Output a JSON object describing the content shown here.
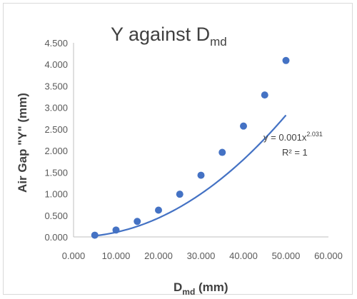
{
  "chart_data": {
    "type": "scatter",
    "title": {
      "main": "Y against D",
      "subscript": "md"
    },
    "xlabel": {
      "main": "D",
      "subscript": "md",
      "suffix": " (mm)"
    },
    "ylabel": "Air Gap \"Y\" (mm)",
    "xlim": [
      0,
      60
    ],
    "ylim": [
      0,
      4.5
    ],
    "x_ticks": [
      "0.000",
      "10.000",
      "20.000",
      "30.000",
      "40.000",
      "50.000",
      "60.000"
    ],
    "y_ticks": [
      "0.000",
      "0.500",
      "1.000",
      "1.500",
      "2.000",
      "2.500",
      "3.000",
      "3.500",
      "4.000",
      "4.500"
    ],
    "grid": false,
    "legend": "none",
    "series": [
      {
        "x": [
          5,
          10,
          15,
          20,
          25,
          30,
          35,
          40,
          45,
          50
        ],
        "y": [
          0.04,
          0.16,
          0.36,
          0.62,
          0.99,
          1.43,
          1.96,
          2.57,
          3.29,
          4.09
        ]
      }
    ],
    "trendline": {
      "type": "power",
      "coefficient": 0.001,
      "exponent": 2.031,
      "equation_prefix": "y = 0.001x",
      "equation_exponent": "2.031",
      "r_squared": "R² = 1"
    },
    "colors": {
      "series": "#4472c4",
      "text": "#595959",
      "axis": "#bfbfbf"
    }
  }
}
